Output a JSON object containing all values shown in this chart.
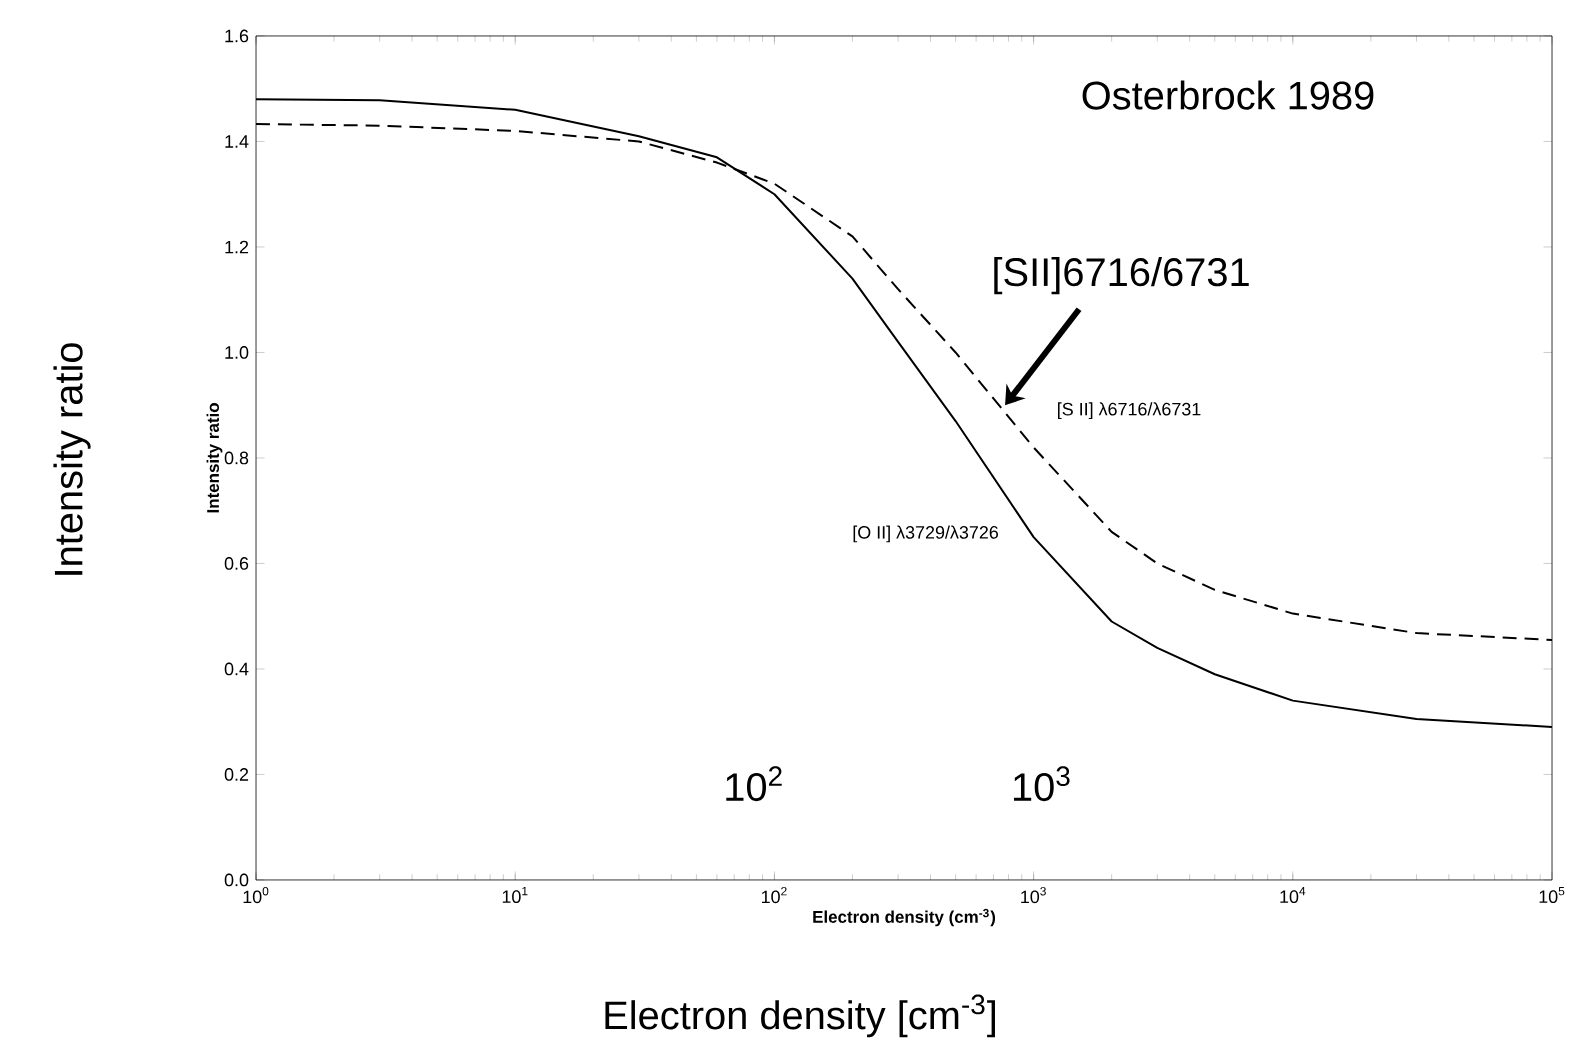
{
  "chart_data": {
    "type": "line",
    "xlabel": "Electron density (cm$^{-3}$)",
    "ylabel": "Intensity ratio",
    "log": "x",
    "xlim": [
      1,
      100000
    ],
    "ylim": [
      0,
      1.6
    ],
    "xticks": [
      {
        "value": 1,
        "label": "10$^{0}$"
      },
      {
        "value": 10,
        "label": "10$^{1}$"
      },
      {
        "value": 100,
        "label": "10$^{2}$"
      },
      {
        "value": 1000,
        "label": "10$^{3}$"
      },
      {
        "value": 10000,
        "label": "10$^{4}$"
      },
      {
        "value": 100000,
        "label": "10$^{5}$"
      }
    ],
    "yticks": [
      {
        "value": 0,
        "label": "0.0"
      },
      {
        "value": 0.2,
        "label": "0.2"
      },
      {
        "value": 0.4,
        "label": "0.4"
      },
      {
        "value": 0.6,
        "label": "0.6"
      },
      {
        "value": 0.8,
        "label": "0.8"
      },
      {
        "value": 1.0,
        "label": "1.0"
      },
      {
        "value": 1.2,
        "label": "1.2"
      },
      {
        "value": 1.4,
        "label": "1.4"
      },
      {
        "value": 1.6,
        "label": "1.6"
      }
    ],
    "x": [
      1,
      3,
      10,
      30,
      60,
      100,
      200,
      300,
      500,
      1000,
      2000,
      3000,
      5000,
      10000,
      30000,
      100000
    ],
    "series": [
      {
        "name": "[O II] λ3729/λ3726",
        "color": "#000000",
        "line_style": "solid",
        "values": [
          1.48,
          1.478,
          1.46,
          1.41,
          1.37,
          1.3,
          1.14,
          1.02,
          0.87,
          0.65,
          0.49,
          0.44,
          0.39,
          0.34,
          0.305,
          0.29
        ]
      },
      {
        "name": "[S II] λ6716/λ6731",
        "color": "#000000",
        "line_style": "dashed",
        "values": [
          1.433,
          1.43,
          1.42,
          1.4,
          1.36,
          1.32,
          1.22,
          1.12,
          1.0,
          0.82,
          0.66,
          0.6,
          0.55,
          0.505,
          0.468,
          0.455
        ]
      }
    ],
    "annotations": [
      "Osterbrock 1989",
      "Intensity ratio",
      "Electron density [cm$^{-3}$]",
      "10$^{2}$",
      "10$^{3}$",
      {
        "text": "[SII]6716/6731",
        "x": 776,
        "y": 0.9
      }
    ]
  }
}
